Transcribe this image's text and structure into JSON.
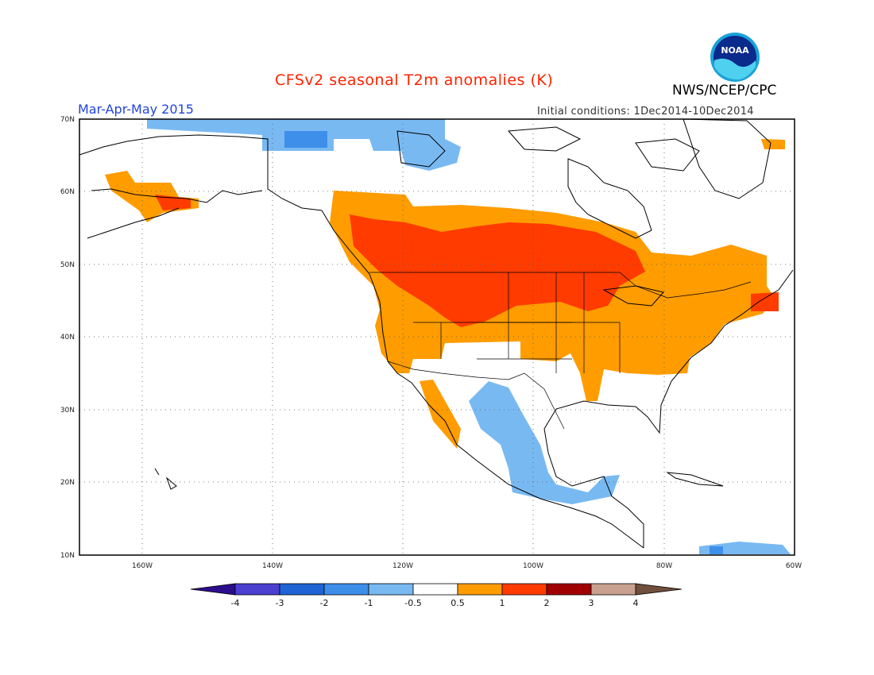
{
  "header": {
    "title": "CFSv2 seasonal T2m anomalies (K)",
    "agency": "NWS/NCEP/CPC",
    "season": "Mar-Apr-May 2015",
    "initial_conditions": "Initial conditions: 1Dec2014-10Dec2014",
    "logo_text": "NOAA"
  },
  "map": {
    "lon_range": [
      -172,
      -60
    ],
    "lat_range": [
      10,
      70
    ],
    "lat_labels": [
      "70N",
      "60N",
      "50N",
      "40N",
      "30N",
      "20N",
      "10N"
    ],
    "lon_labels": [
      "160W",
      "140W",
      "120W",
      "100W",
      "80W",
      "60W"
    ]
  },
  "colorbar": {
    "labels": [
      "-4",
      "-3",
      "-2",
      "-1",
      "-0.5",
      "0.5",
      "1",
      "2",
      "3",
      "4"
    ],
    "colors": [
      "#2c0d8c",
      "#4a3fcf",
      "#1f64d4",
      "#3d8fe9",
      "#79b9f2",
      "#ffffff",
      "#ff9c00",
      "#ff3b00",
      "#a00000",
      "#c8a090",
      "#70503c"
    ]
  }
}
